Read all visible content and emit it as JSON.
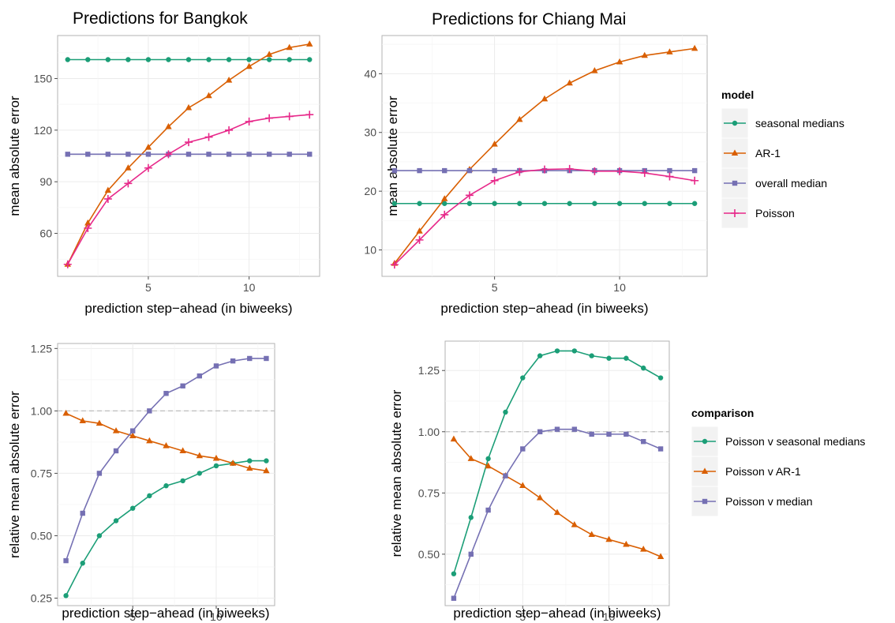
{
  "chart_data": [
    {
      "type": "line",
      "title": "Predictions for Bangkok",
      "xlabel": "prediction step−ahead (in biweeks)",
      "ylabel": "mean absolute error",
      "xlim": [
        0.5,
        13.5
      ],
      "ylim": [
        35,
        175
      ],
      "xticks": [
        5,
        10
      ],
      "yticks": [
        60,
        90,
        120,
        150
      ],
      "grid": true,
      "x": [
        1,
        2,
        3,
        4,
        5,
        6,
        7,
        8,
        9,
        10,
        11,
        12,
        13
      ],
      "series": [
        {
          "name": "seasonal medians",
          "color": "#1b9e77",
          "marker": "circle",
          "values": [
            161,
            161,
            161,
            161,
            161,
            161,
            161,
            161,
            161,
            161,
            161,
            161,
            161
          ]
        },
        {
          "name": "AR-1",
          "color": "#d95f02",
          "marker": "triangle",
          "values": [
            42,
            66,
            85,
            98,
            110,
            122,
            133,
            140,
            149,
            157,
            164,
            168,
            170
          ]
        },
        {
          "name": "overall median",
          "color": "#7570b3",
          "marker": "square",
          "values": [
            106,
            106,
            106,
            106,
            106,
            106,
            106,
            106,
            106,
            106,
            106,
            106,
            106
          ]
        },
        {
          "name": "Poisson",
          "color": "#e7298a",
          "marker": "plus",
          "values": [
            42,
            63,
            80,
            89,
            98,
            106,
            113,
            116,
            120,
            125,
            127,
            128,
            129
          ]
        }
      ]
    },
    {
      "type": "line",
      "title": "Predictions for Chiang Mai",
      "xlabel": "prediction step−ahead (in biweeks)",
      "ylabel": "mean absolute error",
      "xlim": [
        0.5,
        13.5
      ],
      "ylim": [
        5.5,
        46.5
      ],
      "xticks": [
        5,
        10
      ],
      "yticks": [
        10,
        20,
        30,
        40
      ],
      "grid": true,
      "x": [
        1,
        2,
        3,
        4,
        5,
        6,
        7,
        8,
        9,
        10,
        11,
        12,
        13
      ],
      "series": [
        {
          "name": "seasonal medians",
          "color": "#1b9e77",
          "marker": "circle",
          "values": [
            17.9,
            17.9,
            17.9,
            17.9,
            17.9,
            17.9,
            17.9,
            17.9,
            17.9,
            17.9,
            17.9,
            17.9,
            17.9
          ]
        },
        {
          "name": "AR-1",
          "color": "#d95f02",
          "marker": "triangle",
          "values": [
            7.7,
            13.2,
            18.7,
            23.7,
            28.0,
            32.2,
            35.7,
            38.4,
            40.5,
            42.0,
            43.1,
            43.7,
            44.3
          ]
        },
        {
          "name": "overall median",
          "color": "#7570b3",
          "marker": "square",
          "values": [
            23.5,
            23.5,
            23.5,
            23.5,
            23.5,
            23.5,
            23.5,
            23.5,
            23.5,
            23.5,
            23.5,
            23.5,
            23.5
          ]
        },
        {
          "name": "Poisson",
          "color": "#e7298a",
          "marker": "plus",
          "values": [
            7.5,
            11.7,
            16.0,
            19.3,
            21.8,
            23.3,
            23.7,
            23.8,
            23.4,
            23.4,
            23.1,
            22.5,
            21.8
          ]
        }
      ]
    },
    {
      "type": "line",
      "title": "",
      "xlabel": "prediction step−ahead (in biweeks)",
      "ylabel": "relative mean absolute error",
      "xlim": [
        0.5,
        13.5
      ],
      "ylim": [
        0.22,
        1.27
      ],
      "xticks": [
        5,
        10
      ],
      "yticks": [
        "0.25",
        "0.50",
        "0.75",
        "1.00",
        "1.25"
      ],
      "reference_line": 1.0,
      "grid": true,
      "x": [
        1,
        2,
        3,
        4,
        5,
        6,
        7,
        8,
        9,
        10,
        11,
        12,
        13
      ],
      "series": [
        {
          "name": "Poisson v seasonal medians",
          "color": "#1b9e77",
          "marker": "circle",
          "values": [
            0.26,
            0.39,
            0.5,
            0.56,
            0.61,
            0.66,
            0.7,
            0.72,
            0.75,
            0.78,
            0.79,
            0.8,
            0.8
          ]
        },
        {
          "name": "Poisson v AR-1",
          "color": "#d95f02",
          "marker": "triangle",
          "values": [
            0.99,
            0.96,
            0.95,
            0.92,
            0.9,
            0.88,
            0.86,
            0.84,
            0.82,
            0.81,
            0.79,
            0.77,
            0.76
          ]
        },
        {
          "name": "Poisson v median",
          "color": "#7570b3",
          "marker": "square",
          "values": [
            0.4,
            0.59,
            0.75,
            0.84,
            0.92,
            1.0,
            1.07,
            1.1,
            1.14,
            1.18,
            1.2,
            1.21,
            1.21
          ]
        }
      ]
    },
    {
      "type": "line",
      "title": "",
      "xlabel": "prediction step−ahead (in biweeks)",
      "ylabel": "relative mean absolute error",
      "xlim": [
        0.5,
        13.5
      ],
      "ylim": [
        0.29,
        1.37
      ],
      "xticks": [
        5,
        10
      ],
      "yticks": [
        "0.50",
        "0.75",
        "1.00",
        "1.25"
      ],
      "reference_line": 1.0,
      "grid": true,
      "x": [
        1,
        2,
        3,
        4,
        5,
        6,
        7,
        8,
        9,
        10,
        11,
        12,
        13
      ],
      "series": [
        {
          "name": "Poisson v seasonal medians",
          "color": "#1b9e77",
          "marker": "circle",
          "values": [
            0.42,
            0.65,
            0.89,
            1.08,
            1.22,
            1.31,
            1.33,
            1.33,
            1.31,
            1.3,
            1.3,
            1.26,
            1.22
          ]
        },
        {
          "name": "Poisson v AR-1",
          "color": "#d95f02",
          "marker": "triangle",
          "values": [
            0.97,
            0.89,
            0.86,
            0.82,
            0.78,
            0.73,
            0.67,
            0.62,
            0.58,
            0.56,
            0.54,
            0.52,
            0.49
          ]
        },
        {
          "name": "Poisson v median",
          "color": "#7570b3",
          "marker": "square",
          "values": [
            0.32,
            0.5,
            0.68,
            0.82,
            0.93,
            1.0,
            1.01,
            1.01,
            0.99,
            0.99,
            0.99,
            0.96,
            0.93
          ]
        }
      ]
    }
  ],
  "legends": {
    "model": {
      "title": "model",
      "items": [
        {
          "label": "seasonal medians",
          "color": "#1b9e77",
          "marker": "circle"
        },
        {
          "label": "AR-1",
          "color": "#d95f02",
          "marker": "triangle"
        },
        {
          "label": "overall median",
          "color": "#7570b3",
          "marker": "square"
        },
        {
          "label": "Poisson",
          "color": "#e7298a",
          "marker": "plus"
        }
      ]
    },
    "comparison": {
      "title": "comparison",
      "items": [
        {
          "label": "Poisson v seasonal medians",
          "color": "#1b9e77",
          "marker": "circle"
        },
        {
          "label": "Poisson v AR-1",
          "color": "#d95f02",
          "marker": "triangle"
        },
        {
          "label": "Poisson v median",
          "color": "#7570b3",
          "marker": "square"
        }
      ]
    }
  }
}
